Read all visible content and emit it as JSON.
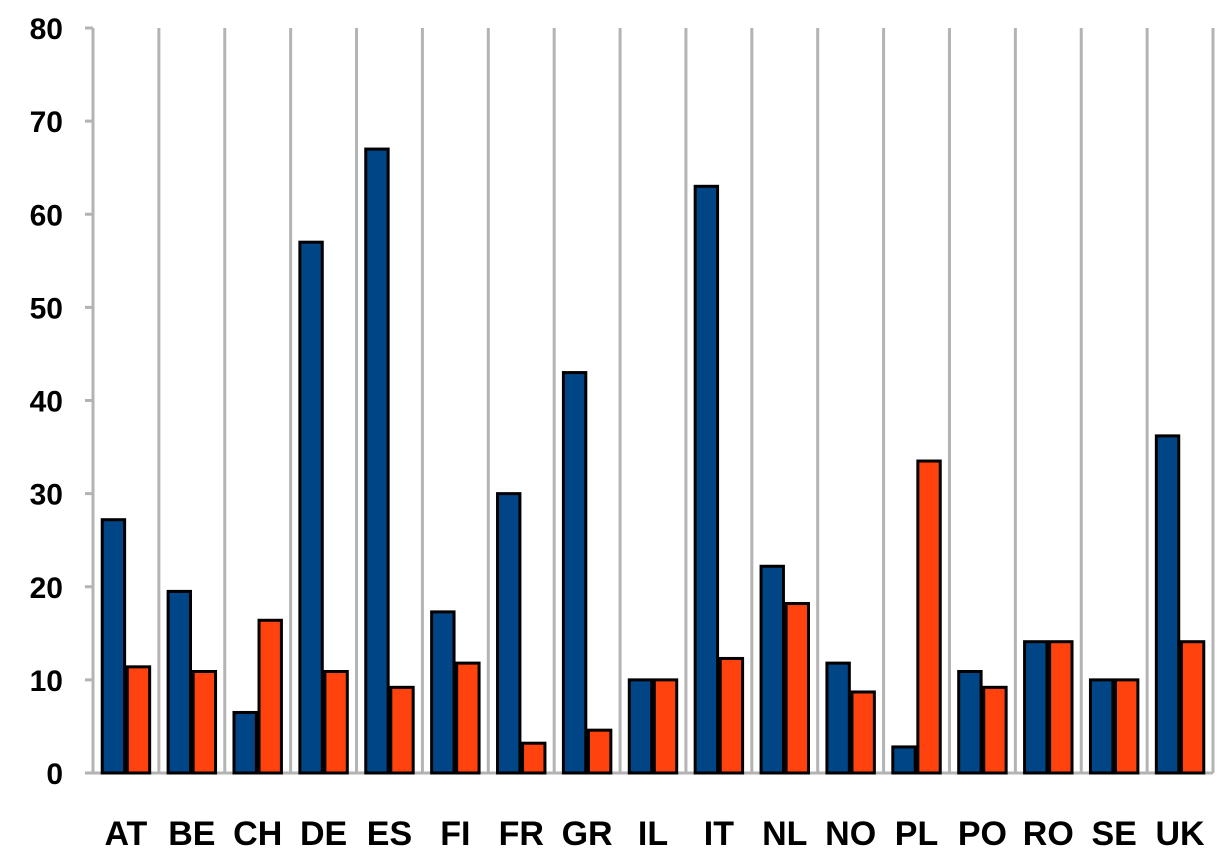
{
  "chart_data": {
    "type": "bar",
    "title": "",
    "xlabel": "",
    "ylabel": "",
    "categories": [
      "AT",
      "BE",
      "CH",
      "DE",
      "ES",
      "FI",
      "FR",
      "GR",
      "IL",
      "IT",
      "NL",
      "NO",
      "PL",
      "PO",
      "RO",
      "SE",
      "UK"
    ],
    "series": [
      {
        "values": [
          27.2,
          19.5,
          6.5,
          57.0,
          67.0,
          17.3,
          30.0,
          43.0,
          10.0,
          63.0,
          22.2,
          11.8,
          2.8,
          10.9,
          14.1,
          10.0,
          36.2
        ],
        "color": "#004586"
      },
      {
        "values": [
          11.4,
          10.9,
          16.4,
          10.9,
          9.2,
          11.8,
          3.2,
          4.6,
          10.0,
          12.3,
          18.2,
          8.7,
          33.5,
          9.2,
          14.1,
          10.0,
          14.1
        ],
        "color": "#ff420e"
      }
    ],
    "ylim": [
      0,
      80
    ],
    "yticks": [
      0,
      10,
      20,
      30,
      40,
      50,
      60,
      70,
      80
    ],
    "grid": true,
    "legend": "none"
  }
}
